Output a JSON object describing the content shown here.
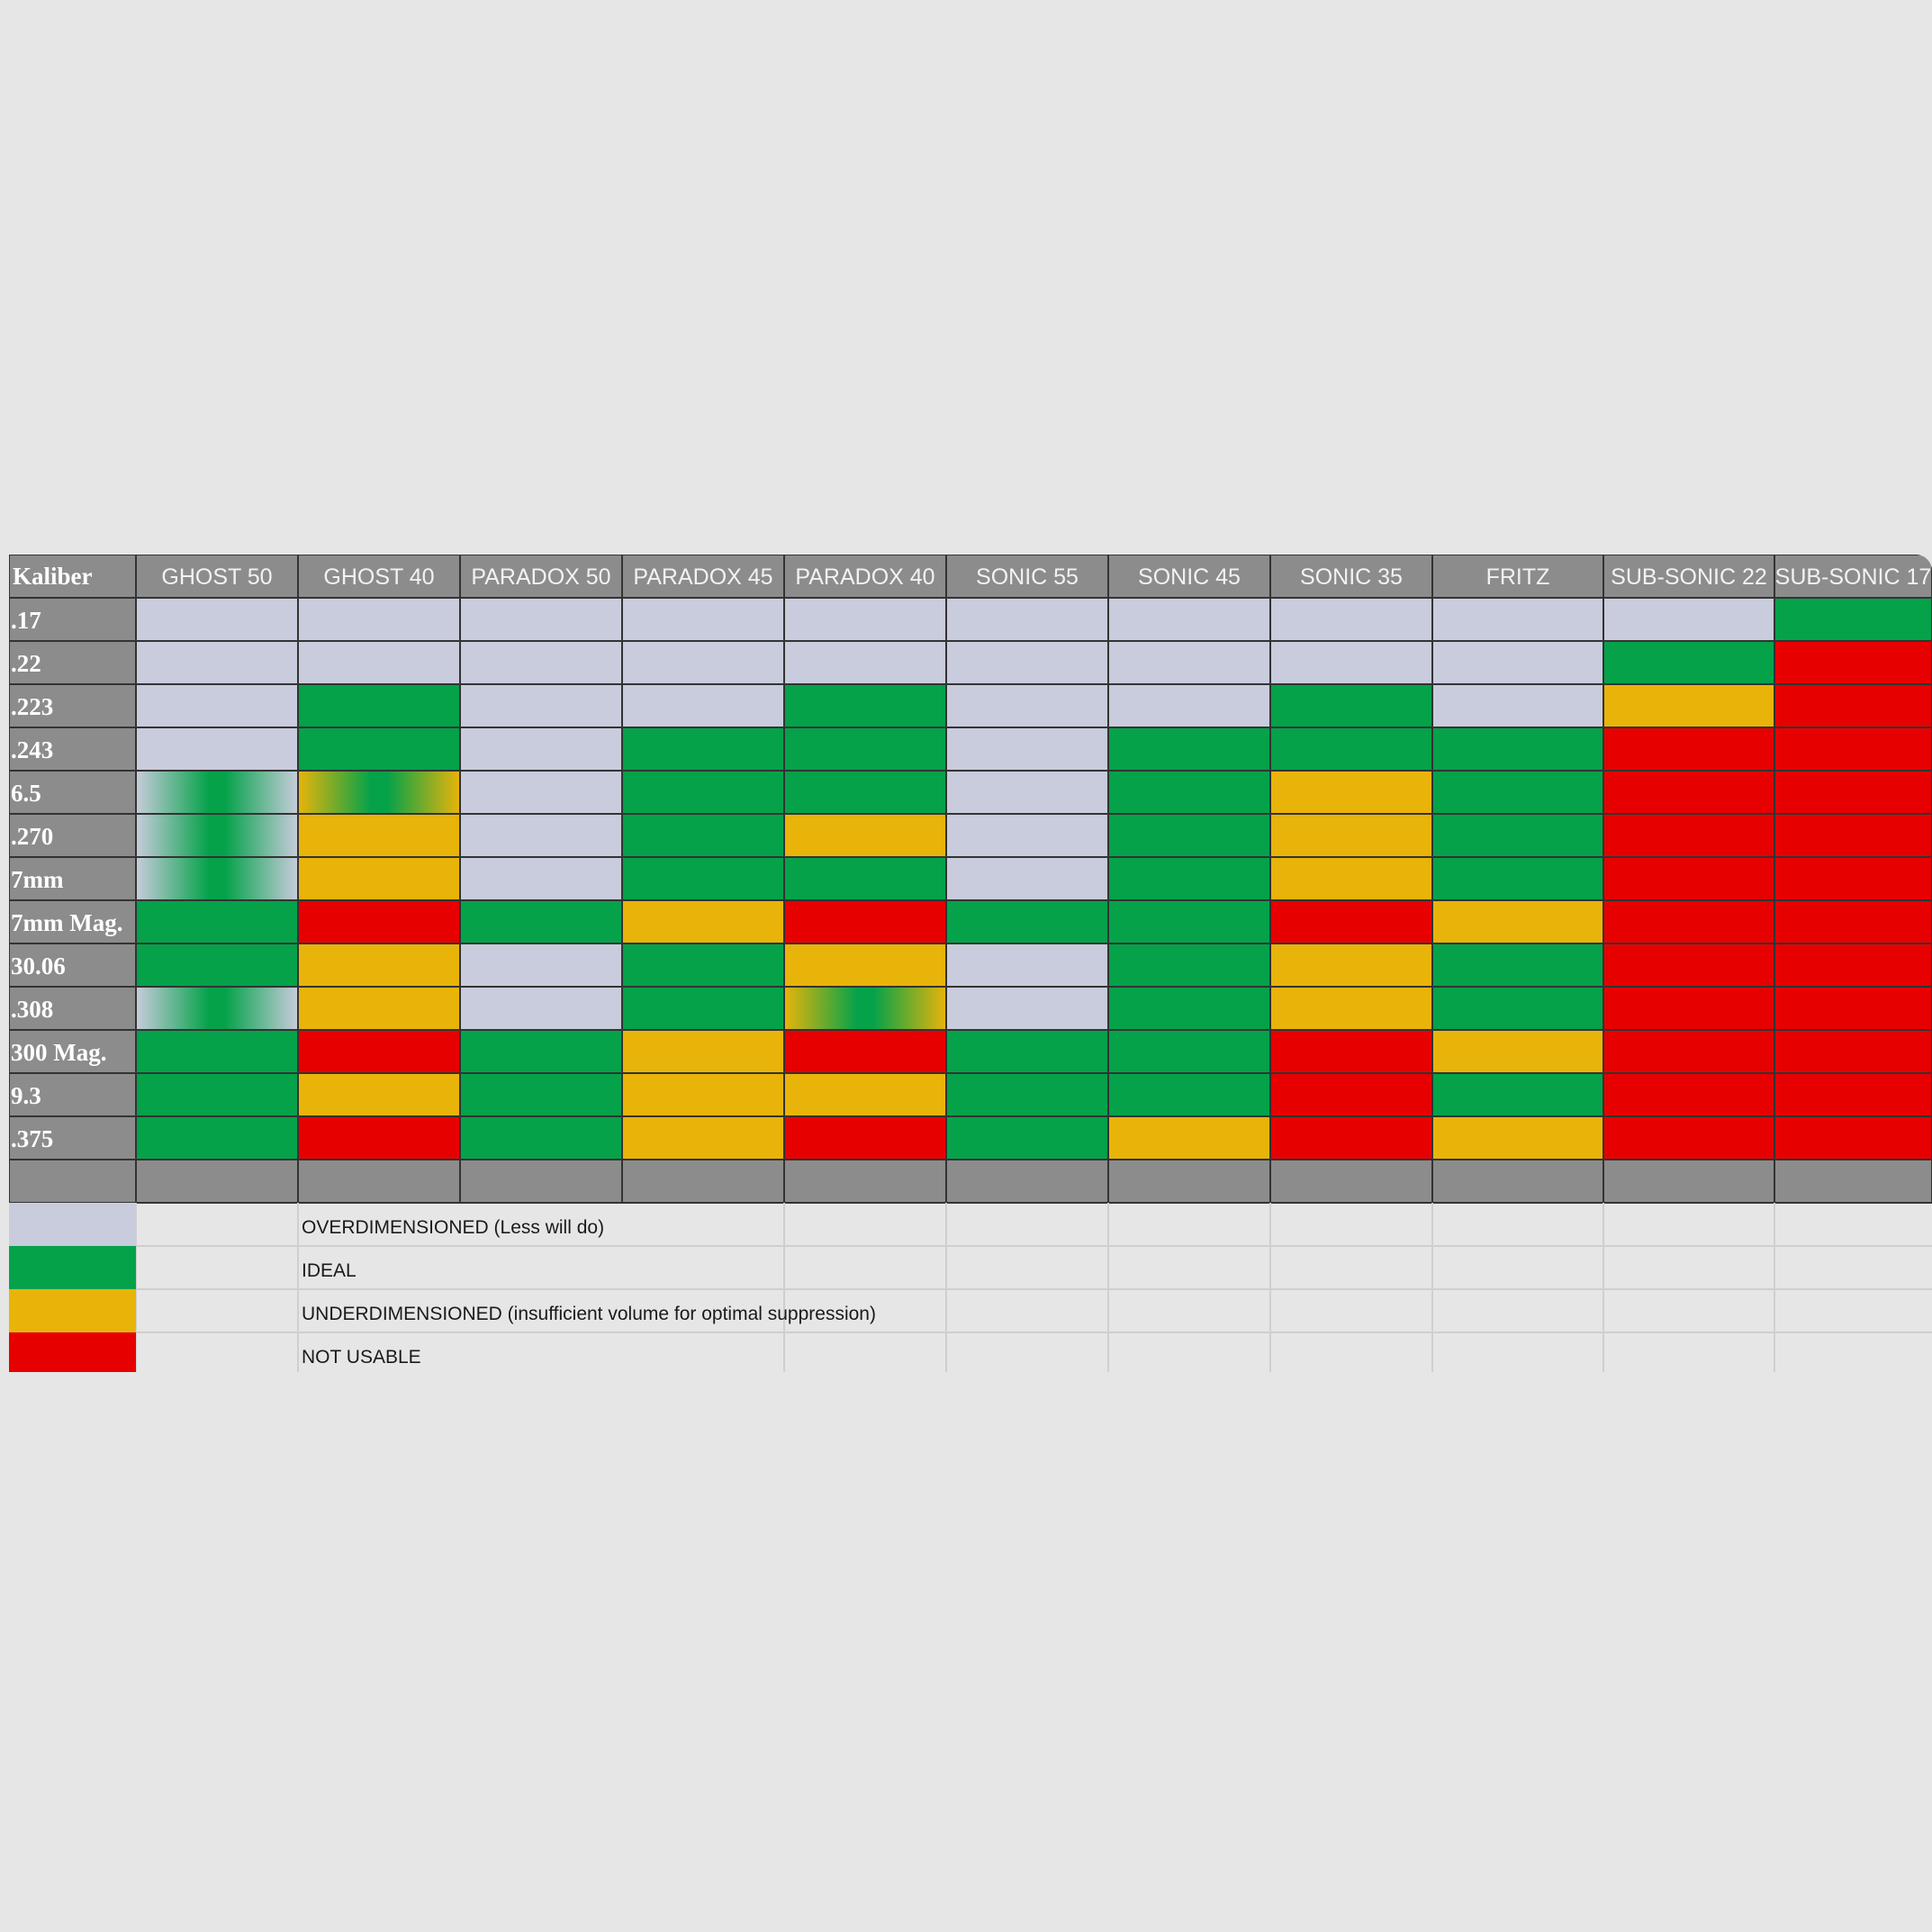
{
  "chart_data": {
    "type": "table",
    "corner_label": "Kaliber",
    "columns": [
      "GHOST 50",
      "GHOST 40",
      "PARADOX 50",
      "PARADOX 45",
      "PARADOX 40",
      "SONIC 55",
      "SONIC 45",
      "SONIC 35",
      "FRITZ",
      "SUB-SONIC 22",
      "SUB-SONIC 17"
    ],
    "rows": [
      {
        "caliber": ".17",
        "ratings": [
          "O",
          "O",
          "O",
          "O",
          "O",
          "O",
          "O",
          "O",
          "O",
          "O",
          "I"
        ]
      },
      {
        "caliber": ".22",
        "ratings": [
          "O",
          "O",
          "O",
          "O",
          "O",
          "O",
          "O",
          "O",
          "O",
          "I",
          "N"
        ]
      },
      {
        "caliber": ".223",
        "ratings": [
          "O",
          "I",
          "O",
          "O",
          "I",
          "O",
          "O",
          "I",
          "O",
          "U",
          "N"
        ]
      },
      {
        "caliber": ".243",
        "ratings": [
          "O",
          "I",
          "O",
          "I",
          "I",
          "O",
          "I",
          "I",
          "I",
          "N",
          "N"
        ]
      },
      {
        "caliber": "6.5",
        "ratings": [
          "O/I",
          "U/I",
          "O",
          "I",
          "I",
          "O",
          "I",
          "U",
          "I",
          "N",
          "N"
        ]
      },
      {
        "caliber": ".270",
        "ratings": [
          "O/I",
          "U",
          "O",
          "I",
          "U",
          "O",
          "I",
          "U",
          "I",
          "N",
          "N"
        ]
      },
      {
        "caliber": "7mm",
        "ratings": [
          "O/I",
          "U",
          "O",
          "I",
          "I",
          "O",
          "I",
          "U",
          "I",
          "N",
          "N"
        ]
      },
      {
        "caliber": "7mm Mag.",
        "ratings": [
          "I",
          "N",
          "I",
          "U",
          "N",
          "I",
          "I",
          "N",
          "U",
          "N",
          "N"
        ]
      },
      {
        "caliber": "30.06",
        "ratings": [
          "I",
          "U",
          "O",
          "I",
          "U",
          "O",
          "I",
          "U",
          "I",
          "N",
          "N"
        ]
      },
      {
        "caliber": ".308",
        "ratings": [
          "O/I",
          "U",
          "O",
          "I",
          "U/I",
          "O",
          "I",
          "U",
          "I",
          "N",
          "N"
        ]
      },
      {
        "caliber": "300 Mag.",
        "ratings": [
          "I",
          "N",
          "I",
          "U",
          "N",
          "I",
          "I",
          "N",
          "U",
          "N",
          "N"
        ]
      },
      {
        "caliber": "9.3",
        "ratings": [
          "I",
          "U",
          "I",
          "U",
          "U",
          "I",
          "I",
          "N",
          "I",
          "N",
          "N"
        ]
      },
      {
        "caliber": ".375",
        "ratings": [
          "I",
          "N",
          "I",
          "U",
          "N",
          "I",
          "U",
          "N",
          "U",
          "N",
          "N"
        ]
      }
    ],
    "legend": [
      {
        "key": "O",
        "label": "OVERDIMENSIONED (Less will do)",
        "color": "#c8ccdc"
      },
      {
        "key": "I",
        "label": "IDEAL",
        "color": "#05a24a"
      },
      {
        "key": "U",
        "label": "UNDERDIMENSIONED (insufficient volume for optimal suppression)",
        "color": "#e8b40a"
      },
      {
        "key": "N",
        "label": "NOT USABLE",
        "color": "#e60000"
      }
    ],
    "colors": {
      "header_background": "#8c8c8c",
      "grid_line": "#333333",
      "page_background": "#e6e6e6"
    }
  }
}
